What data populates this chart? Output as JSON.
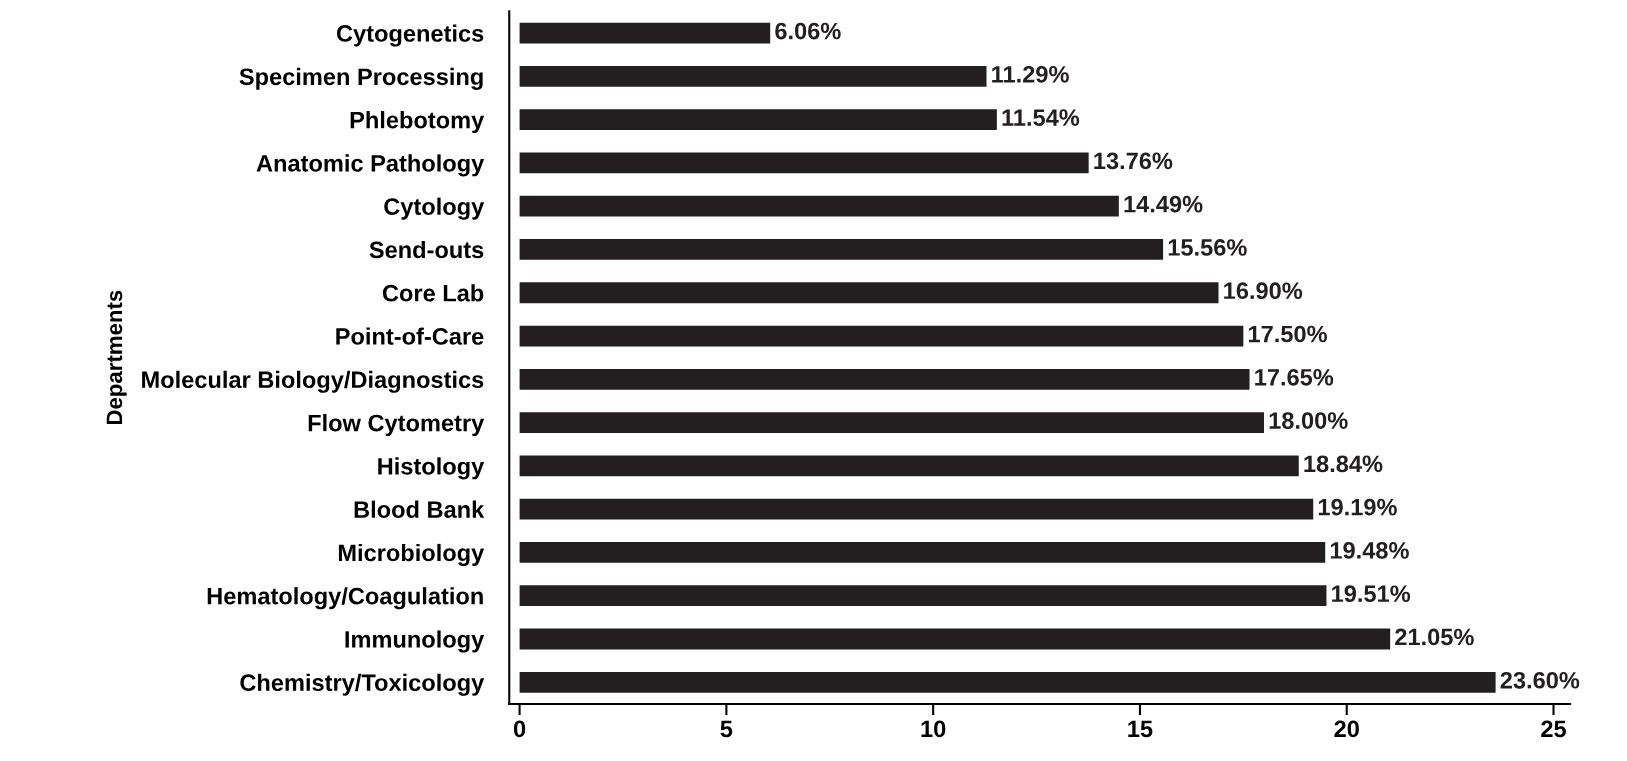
{
  "chart_data": {
    "type": "bar",
    "orientation": "horizontal",
    "ylabel": "Departments",
    "categories": [
      "Cytogenetics",
      "Specimen Processing",
      "Phlebotomy",
      "Anatomic Pathology",
      "Cytology",
      "Send-outs",
      "Core Lab",
      "Point-of-Care",
      "Molecular Biology/Diagnostics",
      "Flow Cytometry",
      "Histology",
      "Blood Bank",
      "Microbiology",
      "Hematology/Coagulation",
      "Immunology",
      "Chemistry/Toxicology"
    ],
    "values": [
      6.06,
      11.29,
      11.54,
      13.76,
      14.49,
      15.56,
      16.9,
      17.5,
      17.65,
      18.0,
      18.84,
      19.19,
      19.48,
      19.51,
      21.05,
      23.6
    ],
    "value_labels": [
      "6.06%",
      "11.29%",
      "11.54%",
      "13.76%",
      "14.49%",
      "15.56%",
      "16.90%",
      "17.50%",
      "17.65%",
      "18.00%",
      "18.84%",
      "19.19%",
      "19.48%",
      "19.51%",
      "21.05%",
      "23.60%"
    ],
    "color": "#231f20",
    "xlim": [
      -0.25,
      25.4
    ],
    "xticks": [
      0,
      5,
      10,
      15,
      20,
      25
    ],
    "grid": false
  }
}
